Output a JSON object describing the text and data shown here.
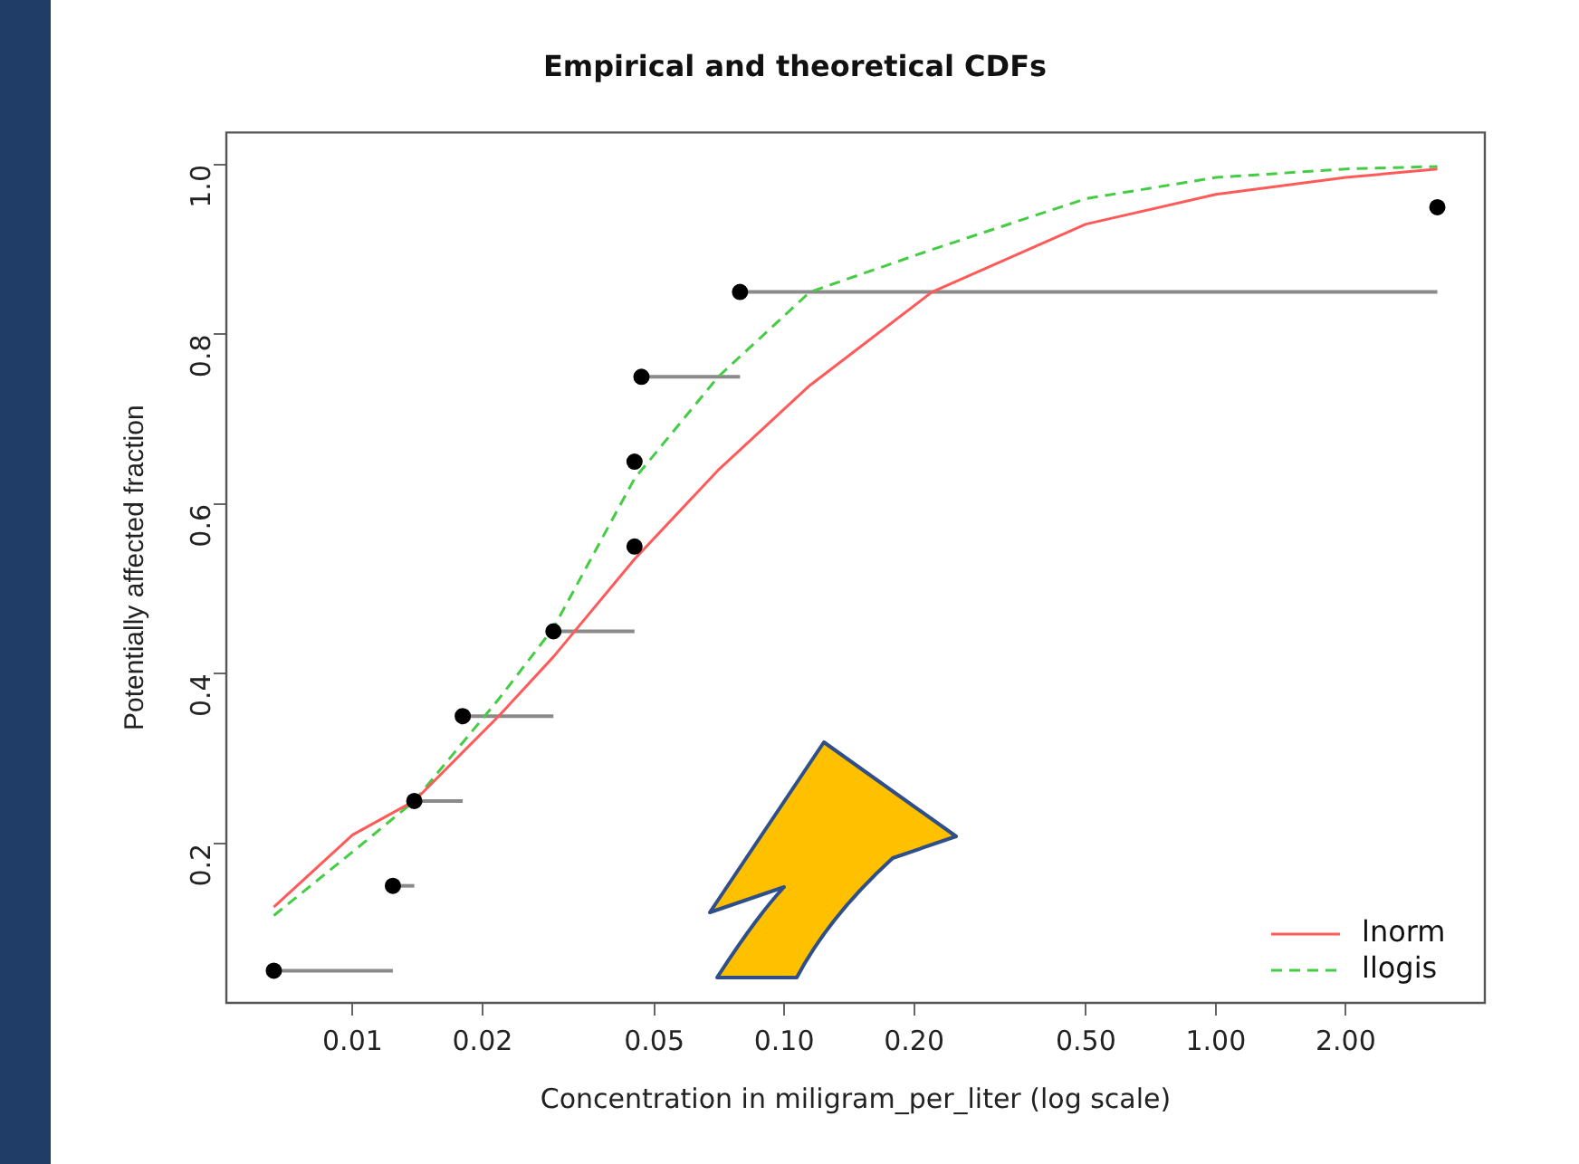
{
  "chart_data": {
    "type": "scatter",
    "title": "Empirical and theoretical CDFs",
    "xlabel": "Concentration in miligram_per_liter (log scale)",
    "ylabel": "Potentially affected fraction",
    "log": "x",
    "xlim": [
      0.0051,
      4.2
    ],
    "xticks": [
      0.01,
      0.02,
      0.05,
      {
        "value": 0.1,
        "label": "0.10"
      },
      {
        "value": 0.2,
        "label": "0.20"
      },
      {
        "value": 0.5,
        "label": "0.50"
      },
      {
        "value": 1,
        "label": "1.00"
      },
      {
        "value": 2,
        "label": "2.00"
      }
    ],
    "ylim": [
      0.012,
      1.038
    ],
    "yticks": [
      0.2,
      0.4,
      0.6,
      0.8,
      {
        "value": 1,
        "label": "1.0"
      }
    ],
    "grid": false,
    "legend": "bottom right",
    "marker": "circle",
    "series": [
      {
        "type": "scatter",
        "color": "#000000",
        "x": [
          0.00657,
          0.0124,
          0.0139,
          0.018,
          0.0292,
          0.045,
          0.045,
          0.0467,
          0.079,
          3.26
        ],
        "values": [
          0.05,
          0.15,
          0.25,
          0.35,
          0.45,
          0.55,
          0.65,
          0.75,
          0.85,
          0.95
        ],
        "xerrors": [
          [
            0.00657,
            0.0124
          ],
          [
            0.0124,
            0.0139
          ],
          [
            0.0139,
            0.018
          ],
          [
            0.018,
            0.0292
          ],
          [
            0.0292,
            0.045
          ],
          null,
          null,
          [
            0.0467,
            0.079
          ],
          [
            0.079,
            3.26
          ],
          null
        ]
      },
      {
        "type": "line",
        "name": "lnorm",
        "color": "#ff5a5a",
        "line_style": "solid",
        "marker": "none",
        "x": [
          0.00657,
          0.01,
          0.0139,
          0.0218,
          0.0292,
          0.045,
          0.0703,
          0.1147,
          0.22,
          0.5,
          1,
          2,
          3.26
        ],
        "values": [
          0.125,
          0.21,
          0.25,
          0.35,
          0.42,
          0.535,
          0.64,
          0.74,
          0.85,
          0.93,
          0.965,
          0.985,
          0.995
        ]
      },
      {
        "type": "line",
        "name": "llogis",
        "color": "#44cc44",
        "line_style": "dashed",
        "marker": "none",
        "x": [
          0.00657,
          0.01,
          0.0139,
          0.0218,
          0.0292,
          0.045,
          0.0703,
          0.1147,
          0.22,
          0.5,
          1,
          2,
          3.26
        ],
        "values": [
          0.115,
          0.19,
          0.25,
          0.37,
          0.454,
          0.63,
          0.75,
          0.85,
          0.9,
          0.96,
          0.985,
          0.995,
          0.998
        ]
      }
    ]
  }
}
